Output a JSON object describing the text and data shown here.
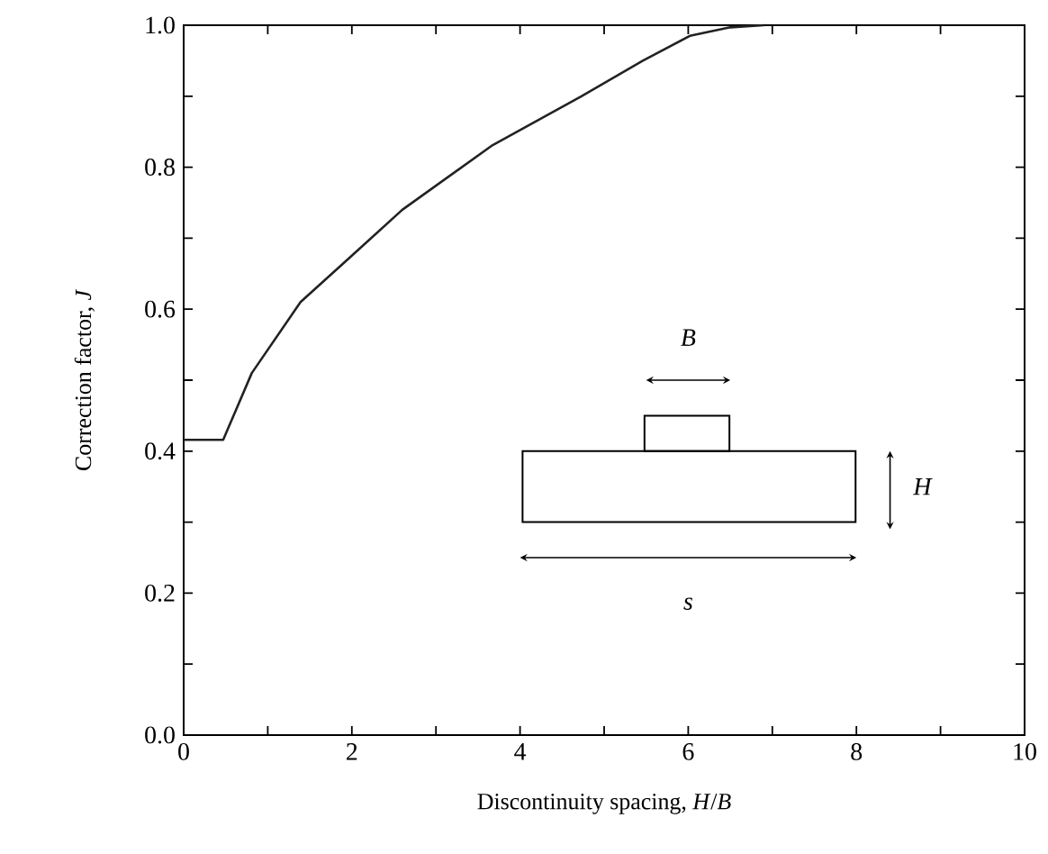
{
  "chart_data": {
    "type": "line",
    "xlabel": "Discontinuity spacing, *H*/*B*",
    "ylabel": "Correction factor, *J*",
    "x": [
      0,
      0.47,
      0.81,
      1.39,
      1.95,
      2.6,
      3.66,
      4.73,
      5.46,
      6.02,
      6.5,
      6.9
    ],
    "values": [
      0.416,
      0.416,
      0.51,
      0.61,
      0.67,
      0.74,
      0.83,
      0.9,
      0.95,
      0.985,
      0.997,
      1.0
    ],
    "color": "#222222",
    "xlim": [
      0,
      10
    ],
    "ylim": [
      0,
      1.0
    ],
    "xticks": [
      0,
      {
        "value": 1,
        "label": null
      },
      2,
      {
        "value": 3,
        "label": null
      },
      4,
      {
        "value": 5,
        "label": null
      },
      6,
      {
        "value": 7,
        "label": null
      },
      8,
      {
        "value": 9,
        "label": null
      },
      10
    ],
    "yticks": [
      {
        "value": 0,
        "label": "0.0"
      },
      {
        "value": 0.1,
        "label": null
      },
      {
        "value": 0.2,
        "label": "0.2"
      },
      {
        "value": 0.3,
        "label": null
      },
      {
        "value": 0.4,
        "label": "0.4"
      },
      {
        "value": 0.5,
        "label": null
      },
      {
        "value": 0.6,
        "label": "0.6"
      },
      {
        "value": 0.7,
        "label": null
      },
      {
        "value": 0.8,
        "label": "0.8"
      },
      {
        "value": 0.9,
        "label": null
      },
      {
        "value": 1.0,
        "label": "1.0"
      }
    ],
    "annotations": [
      "B",
      "H",
      "s"
    ]
  }
}
